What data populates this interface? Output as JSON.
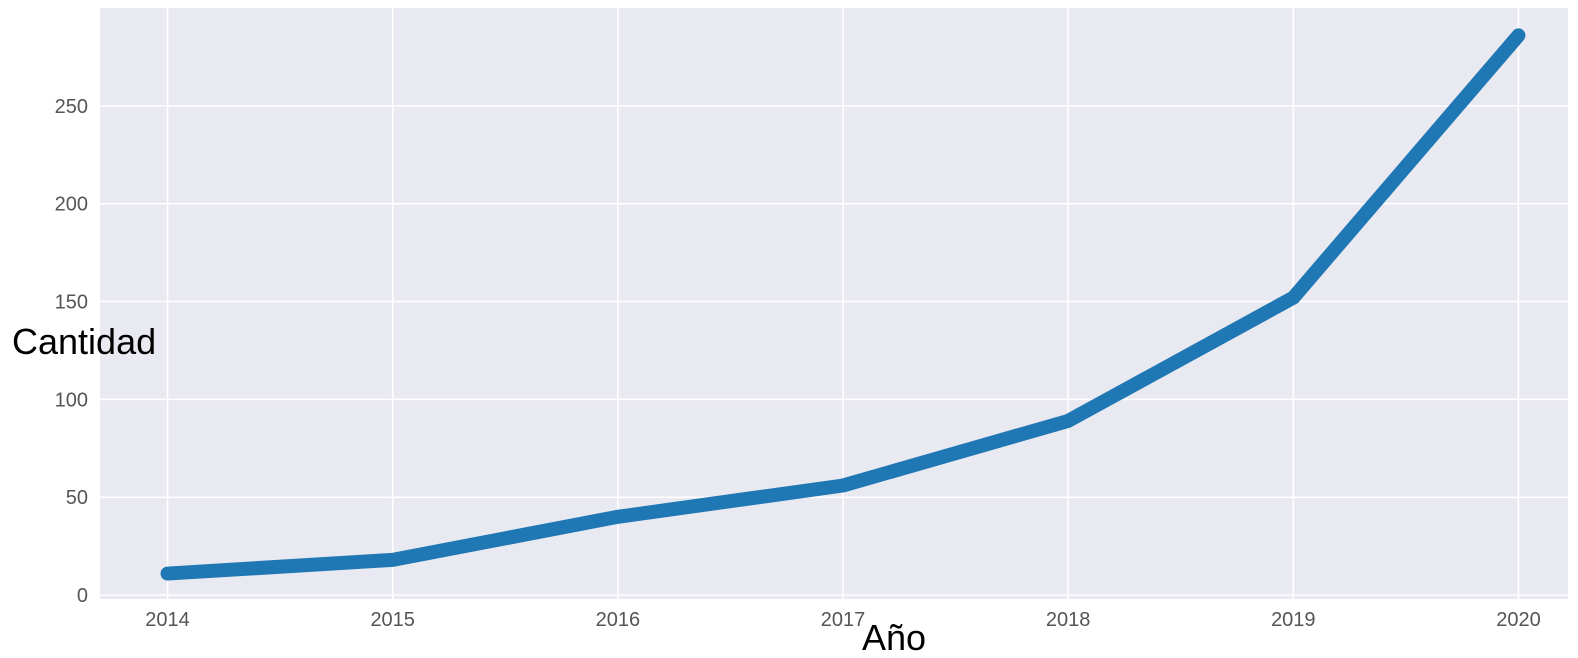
{
  "chart_data": {
    "type": "line",
    "title": "",
    "xlabel": "Año",
    "ylabel": "Cantidad",
    "x": [
      2014,
      2015,
      2016,
      2017,
      2018,
      2019,
      2020
    ],
    "series": [
      {
        "values": [
          11,
          18,
          40,
          56,
          89,
          152,
          286
        ],
        "color": "#1f77b4"
      }
    ],
    "xticks": [
      "2014",
      "2015",
      "2016",
      "2017",
      "2018",
      "2019",
      "2020"
    ],
    "yticks": [
      "0",
      "50",
      "100",
      "150",
      "200",
      "250"
    ],
    "xlim": [
      2013.7,
      2020.22
    ],
    "ylim": [
      -2,
      300
    ],
    "grid": true,
    "background": "#e9e9f1",
    "grid_color": "#ffffff"
  }
}
